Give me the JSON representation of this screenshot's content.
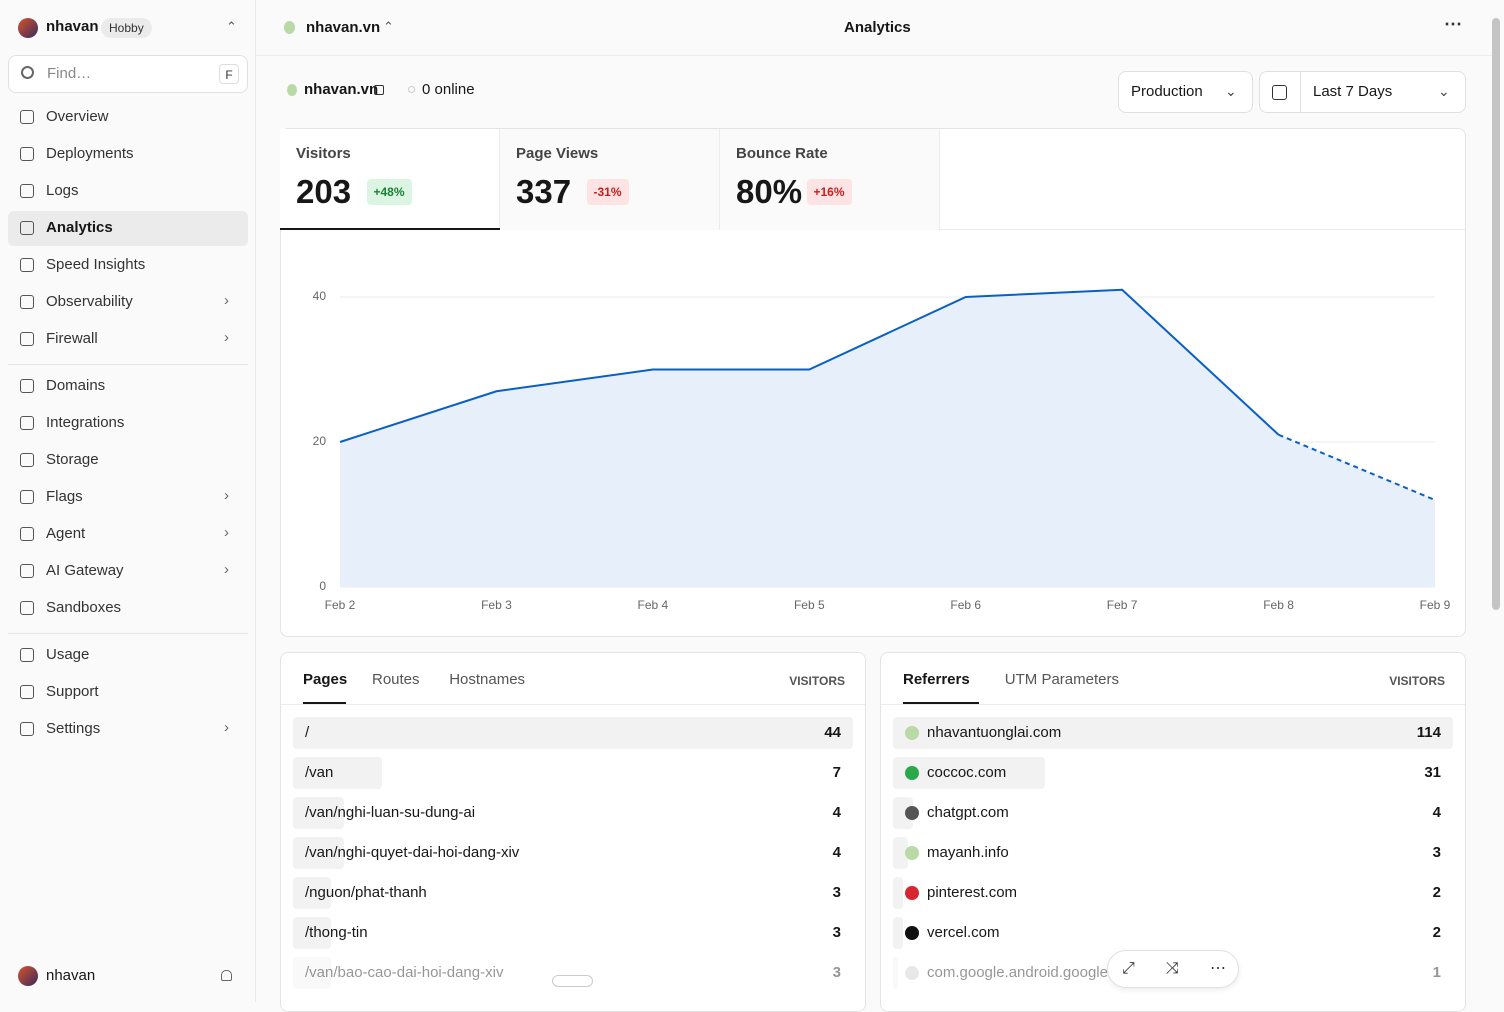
{
  "sidebar": {
    "team": {
      "name": "nhavan",
      "plan": "Hobby"
    },
    "search": {
      "placeholder": "Find…",
      "shortcut": "F"
    },
    "nav_groups": [
      [
        {
          "label": "Overview"
        },
        {
          "label": "Deployments"
        },
        {
          "label": "Logs"
        },
        {
          "label": "Analytics",
          "active": true
        },
        {
          "label": "Speed Insights"
        },
        {
          "label": "Observability",
          "submenu": true
        },
        {
          "label": "Firewall",
          "submenu": true
        }
      ],
      [
        {
          "label": "Domains"
        },
        {
          "label": "Integrations"
        },
        {
          "label": "Storage"
        },
        {
          "label": "Flags",
          "submenu": true
        },
        {
          "label": "Agent",
          "submenu": true
        },
        {
          "label": "AI Gateway",
          "submenu": true
        },
        {
          "label": "Sandboxes"
        }
      ],
      [
        {
          "label": "Usage"
        },
        {
          "label": "Support"
        },
        {
          "label": "Settings",
          "submenu": true
        }
      ]
    ],
    "user": {
      "name": "nhavan"
    }
  },
  "header": {
    "project": "nhavan.vn",
    "title": "Analytics"
  },
  "toolbar": {
    "project": "nhavan.vn",
    "online": "0 online",
    "environment": "Production",
    "range": "Last 7 Days"
  },
  "metrics": [
    {
      "label": "Visitors",
      "value": 203,
      "change": "+48%",
      "tone": "good",
      "selected": true
    },
    {
      "label": "Page Views",
      "value": 337,
      "change": "-31%",
      "tone": "bad"
    },
    {
      "label": "Bounce Rate",
      "value": "80%",
      "change": "+16%",
      "tone": "bad"
    }
  ],
  "chart_data": {
    "type": "line",
    "categories": [
      "Feb 2",
      "Feb 3",
      "Feb 4",
      "Feb 5",
      "Feb 6",
      "Feb 7",
      "Feb 8",
      "Feb 9"
    ],
    "series": [
      {
        "color": "#0a5fc4",
        "values": [
          20,
          27,
          30,
          30,
          40,
          41,
          21,
          null
        ]
      },
      {
        "color": "#0a5fc4",
        "dashed": true,
        "values": [
          null,
          null,
          null,
          null,
          null,
          null,
          21,
          12
        ]
      }
    ],
    "area_color": "#e6effa",
    "ylim": [
      0,
      44
    ],
    "yticks": [
      0,
      20,
      40
    ],
    "grid": true
  },
  "pages_panel": {
    "tabs": [
      "Pages",
      "Routes",
      "Hostnames"
    ],
    "column": "VISITORS",
    "rows": [
      {
        "label": "/",
        "value": 44
      },
      {
        "label": "/van",
        "value": 7
      },
      {
        "label": "/van/nghi-luan-su-dung-ai",
        "value": 4
      },
      {
        "label": "/van/nghi-quyet-dai-hoi-dang-xiv",
        "value": 4
      },
      {
        "label": "/nguon/phat-thanh",
        "value": 3
      },
      {
        "label": "/thong-tin",
        "value": 3
      },
      {
        "label": "/van/bao-cao-dai-hoi-dang-xiv",
        "value": 3
      }
    ]
  },
  "referrers_panel": {
    "tabs": [
      "Referrers",
      "UTM Parameters"
    ],
    "column": "VISITORS",
    "rows": [
      {
        "label": "nhavantuonglai.com",
        "value": 114
      },
      {
        "label": "coccoc.com",
        "value": 31
      },
      {
        "label": "chatgpt.com",
        "value": 4
      },
      {
        "label": "mayanh.info",
        "value": 3
      },
      {
        "label": "pinterest.com",
        "value": 2
      },
      {
        "label": "vercel.com",
        "value": 2
      },
      {
        "label": "com.google.android.googleq",
        "value": 1
      }
    ]
  }
}
